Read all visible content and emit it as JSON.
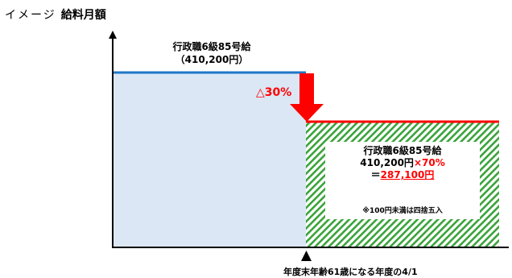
{
  "heading": {
    "prefix": "イメージ",
    "title": "給料月額"
  },
  "before": {
    "line1": "行政職6級85号給",
    "line2": "（410,200円）",
    "value": 410200
  },
  "reduction": {
    "label": "△30%"
  },
  "after": {
    "line1": "行政職6級85号給",
    "line2_a": "410,200円",
    "line2_b": "×70%",
    "line3_a": "＝",
    "line3_b": "287,100円",
    "note": "※100円未満は四捨五入",
    "value": 287100
  },
  "x_marker": {
    "label": "年度末年齢61歳になる年度の4/1"
  },
  "colors": {
    "before_line": "#1f77c8",
    "before_fill": "#dbe7f5",
    "after_line": "#ff0000",
    "after_hatch": "#3aa33a",
    "arrow": "#ff0000",
    "axis": "#000000"
  }
}
